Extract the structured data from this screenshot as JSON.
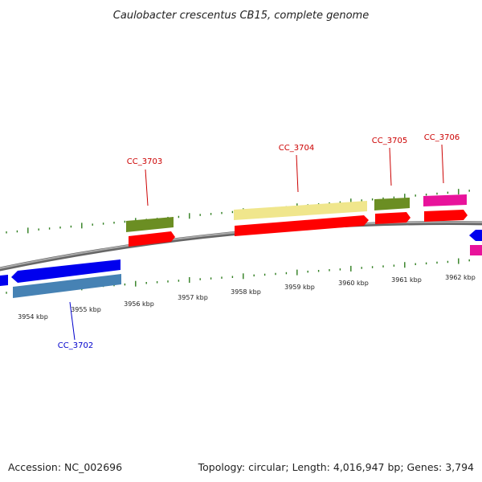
{
  "title": "Caulobacter crescentus CB15, complete genome",
  "footer": {
    "accession": "Accession: NC_002696",
    "summary": "Topology: circular; Length: 4,016,947 bp; Genes: 3,794"
  },
  "colors": {
    "backbone": "#888888",
    "tick": "#2e7d1e",
    "label_red": "#cc0000",
    "label_blue": "#0000cc",
    "cds_red": "#ff0000",
    "cds_blue": "#0000ee",
    "olive": "#6b8e23",
    "steel": "#4682b4",
    "khaki": "#f0e68c",
    "magenta": "#e8139b"
  },
  "scale": {
    "labels": [
      "3954 kbp",
      "3955 kbp",
      "3956 kbp",
      "3957 kbp",
      "3958 kbp",
      "3959 kbp",
      "3960 kbp",
      "3961 kbp",
      "3962 kbp"
    ]
  },
  "gene_labels": [
    {
      "name": "CC_3702",
      "strand": "minus"
    },
    {
      "name": "CC_3703",
      "strand": "plus"
    },
    {
      "name": "CC_3704",
      "strand": "plus"
    },
    {
      "name": "CC_3705",
      "strand": "plus"
    },
    {
      "name": "CC_3706",
      "strand": "plus"
    }
  ]
}
